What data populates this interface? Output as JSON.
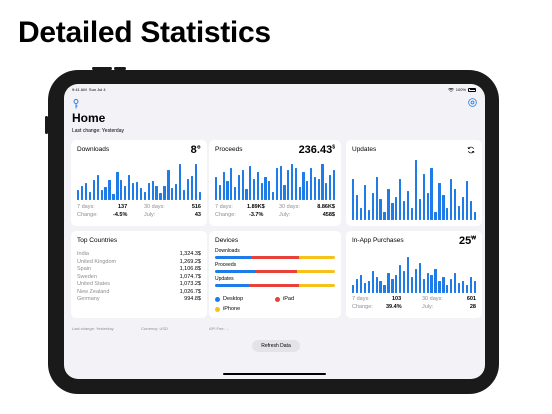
{
  "headline": "Detailed Statistics",
  "status": {
    "time": "9:41 AM",
    "date": "Sun Jul 4",
    "battery": "100%"
  },
  "page": {
    "title": "Home",
    "last_change": "Last change: Yesterday"
  },
  "colors": {
    "accent": "#1f7be8",
    "red": "#e8413a",
    "yellow": "#f5c21b",
    "background": "#f2f2f7"
  },
  "icons": {
    "left": "key-icon",
    "right": "settings-icon",
    "updates": "refresh-icon"
  },
  "downloads": {
    "title": "Downloads",
    "value": "8",
    "value_symbol": "⊕",
    "bars": [
      10,
      14,
      17,
      8,
      20,
      25,
      10,
      13,
      20,
      6,
      28,
      20,
      14,
      25,
      17,
      18,
      12,
      8,
      17,
      19,
      14,
      7,
      14,
      30,
      12,
      16,
      36,
      10,
      21,
      24,
      36,
      8
    ],
    "stats": {
      "l1": "7 days:",
      "v1": "137",
      "l2": "30 days:",
      "v2": "516",
      "l3": "Change:",
      "v3": "-4.5%",
      "l4": "July:",
      "v4": "43"
    }
  },
  "proceeds": {
    "title": "Proceeds",
    "value": "236.43",
    "value_symbol": "$",
    "bars": [
      22,
      14,
      26,
      18,
      30,
      12,
      24,
      28,
      10,
      32,
      20,
      26,
      16,
      22,
      18,
      8,
      30,
      32,
      14,
      28,
      34,
      30,
      12,
      26,
      18,
      30,
      22,
      20,
      34,
      16,
      24,
      28
    ],
    "stats": {
      "l1": "7 days:",
      "v1": "1.89K$",
      "l2": "30 days:",
      "v2": "8.86K$",
      "l3": "Change:",
      "v3": "-3.7%",
      "l4": "July:",
      "v4": "458$"
    }
  },
  "updates": {
    "title": "Updates",
    "bars": [
      40,
      24,
      12,
      34,
      10,
      26,
      42,
      20,
      8,
      30,
      16,
      22,
      40,
      18,
      28,
      12,
      58,
      20,
      44,
      26,
      50,
      8,
      36,
      24,
      12,
      40,
      30,
      14,
      22,
      38,
      18,
      8
    ]
  },
  "countries": {
    "title": "Top Countries",
    "rows": [
      {
        "name": "India",
        "value": "1,324.3$"
      },
      {
        "name": "United Kingdom",
        "value": "1,269.2$"
      },
      {
        "name": "Spain",
        "value": "1,106.8$"
      },
      {
        "name": "Sweden",
        "value": "1,074.7$"
      },
      {
        "name": "United States",
        "value": "1,073.2$"
      },
      {
        "name": "New Zealand",
        "value": "1,026.7$"
      },
      {
        "name": "Germany",
        "value": "994.8$"
      }
    ]
  },
  "devices": {
    "title": "Devices",
    "groups": [
      {
        "label": "Downloads",
        "desktop": 0.3,
        "ipad": 0.4,
        "iphone": 0.3
      },
      {
        "label": "Proceeds",
        "desktop": 0.34,
        "ipad": 0.34,
        "iphone": 0.32
      },
      {
        "label": "Updates",
        "desktop": 0.28,
        "ipad": 0.42,
        "iphone": 0.3
      }
    ],
    "legend": {
      "desktop": "Desktop",
      "ipad": "iPad",
      "iphone": "iPhone"
    }
  },
  "iap": {
    "title": "In-App Purchases",
    "value": "25",
    "value_symbol": "₩",
    "bars": [
      8,
      14,
      18,
      10,
      12,
      22,
      16,
      12,
      8,
      20,
      14,
      18,
      28,
      22,
      36,
      16,
      24,
      30,
      14,
      20,
      18,
      24,
      12,
      16,
      8,
      14,
      20,
      10,
      12,
      8,
      16,
      12
    ],
    "stats": {
      "l1": "7 days:",
      "v1": "103",
      "l2": "30 days:",
      "v2": "601",
      "l3": "Change:",
      "v3": "39.4%",
      "l4": "July:",
      "v4": "28"
    }
  },
  "footer": {
    "last_change": "Last change: Yesterday",
    "currency": "Currency: USD",
    "api_fee": "API Fee: ..."
  },
  "refresh_label": "Refresh Data"
}
